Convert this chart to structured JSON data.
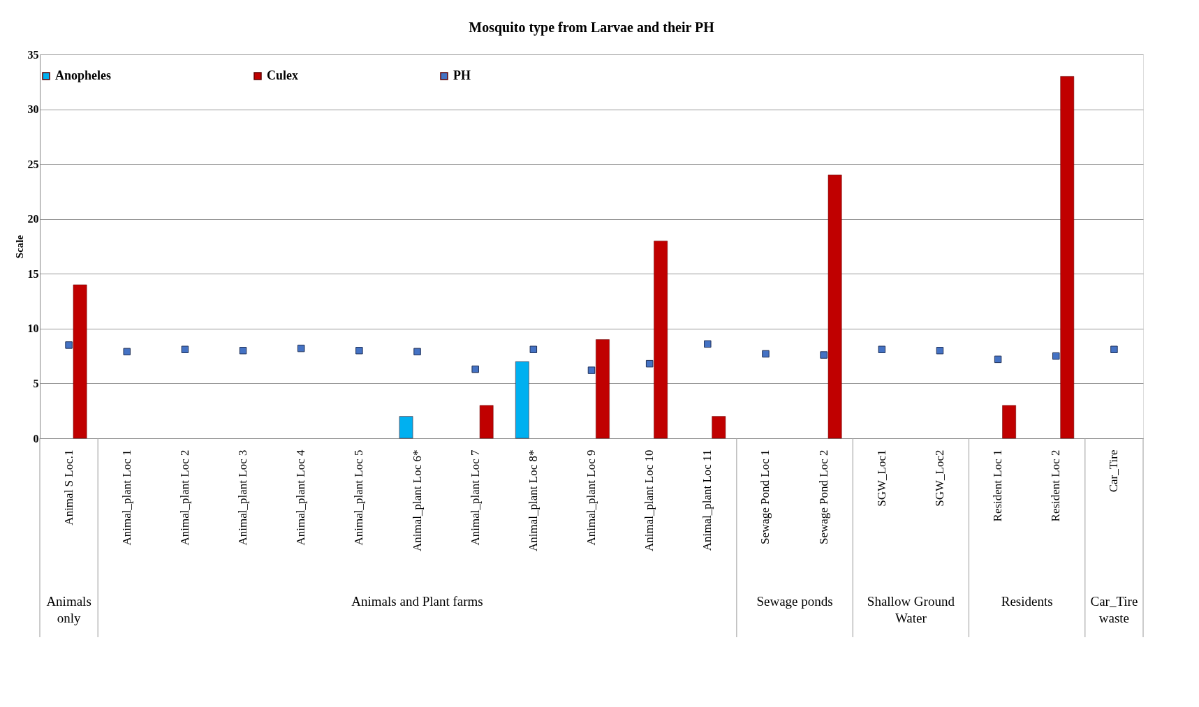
{
  "chart_data": {
    "type": "bar",
    "title": "Mosquito type from Larvae and their PH",
    "ylabel": "Scale",
    "categories": [
      "Animal S   Loc.1",
      "Animal_plant  Loc 1",
      "Animal_plant  Loc 2",
      "Animal_plant  Loc 3",
      "Animal_plant  Loc 4",
      "Animal_plant  Loc 5",
      "Animal_plant  Loc 6*",
      "Animal_plant  Loc 7",
      "Animal_plant  Loc 8*",
      "Animal_plant  Loc 9",
      "Animal_plant  Loc 10",
      "Animal_plant  Loc 11",
      "Sewage Pond Loc 1",
      "Sewage Pond Loc 2",
      "SGW_Loc1",
      "SGW_Loc2",
      "Resident Loc 1",
      "Resident Loc 2",
      "Car_Tire"
    ],
    "series": [
      {
        "name": "Anopheles",
        "color": "#00b0f0",
        "values": [
          null,
          null,
          null,
          null,
          null,
          null,
          2,
          null,
          7,
          null,
          null,
          null,
          null,
          null,
          null,
          null,
          null,
          null,
          null
        ]
      },
      {
        "name": "Culex",
        "color": "#c00000",
        "values": [
          14,
          null,
          null,
          null,
          null,
          null,
          null,
          3,
          null,
          9,
          18,
          2,
          null,
          24,
          null,
          null,
          3,
          33,
          null
        ]
      },
      {
        "name": "PH",
        "type": "scatter",
        "marker": "square",
        "color": "#4472c4",
        "values": [
          8.5,
          7.9,
          8.1,
          8.0,
          8.2,
          8.0,
          7.9,
          6.3,
          8.1,
          6.2,
          6.8,
          8.6,
          7.7,
          7.6,
          8.1,
          8.0,
          7.2,
          7.5,
          8.1
        ]
      }
    ],
    "ylim": [
      0,
      35
    ],
    "yticks": [
      0,
      5,
      10,
      15,
      20,
      25,
      30,
      35
    ],
    "grid": "y",
    "legend": "top",
    "annotations": [
      "Animals\nonly",
      "Animals and Plant farms",
      "Sewage ponds",
      "Shallow Ground\nWater",
      "Residents",
      "Car_Tire\nwaste"
    ]
  }
}
